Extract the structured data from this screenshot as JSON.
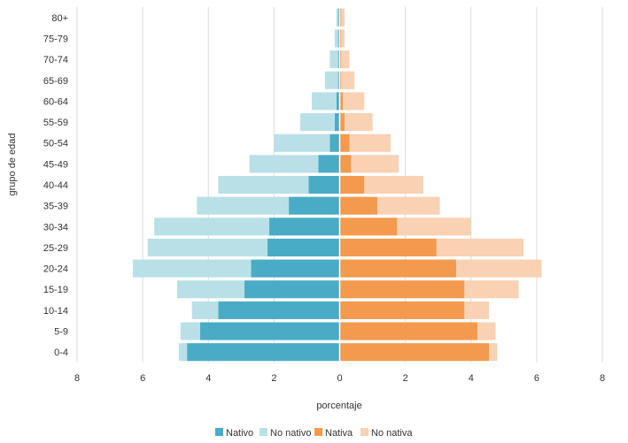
{
  "chart_data": {
    "type": "bar",
    "orientation": "horizontal",
    "layout": "population-pyramid",
    "ylabel": "grupo de edad",
    "xlabel": "porcentaje",
    "xlim": [
      -8,
      8
    ],
    "x_ticks": [
      -8,
      -6,
      -4,
      -2,
      0,
      2,
      4,
      6,
      8
    ],
    "x_tick_labels": [
      "8",
      "6",
      "4",
      "2",
      "0",
      "2",
      "4",
      "6",
      "8"
    ],
    "grid": "vertical",
    "legend_position": "bottom",
    "categories": [
      "80+",
      "75-79",
      "70-74",
      "65-69",
      "60-64",
      "55-59",
      "50-54",
      "45-49",
      "40-44",
      "35-39",
      "30-34",
      "25-29",
      "20-24",
      "15-19",
      "10-14",
      "5-9",
      "0-4"
    ],
    "series": [
      {
        "name": "Nativo",
        "side": "left",
        "color": "#4aabc6",
        "values": [
          0.05,
          0.05,
          0.05,
          0.05,
          0.1,
          0.15,
          0.3,
          0.65,
          0.95,
          1.55,
          2.15,
          2.2,
          2.7,
          2.9,
          3.7,
          4.25,
          4.65
        ]
      },
      {
        "name": "No nativo",
        "side": "left",
        "color": "#b9e0e7",
        "values": [
          0.05,
          0.1,
          0.25,
          0.4,
          0.75,
          1.05,
          1.7,
          2.1,
          2.75,
          2.8,
          3.5,
          3.65,
          3.6,
          2.05,
          0.8,
          0.6,
          0.25
        ]
      },
      {
        "name": "Nativa",
        "side": "right",
        "color": "#f39a4e",
        "values": [
          0.05,
          0.05,
          0.05,
          0.05,
          0.1,
          0.15,
          0.3,
          0.35,
          0.75,
          1.15,
          1.75,
          2.95,
          3.55,
          3.8,
          3.8,
          4.2,
          4.55
        ]
      },
      {
        "name": "No nativa",
        "side": "right",
        "color": "#f9d1b3",
        "values": [
          0.1,
          0.1,
          0.25,
          0.4,
          0.65,
          0.85,
          1.25,
          1.45,
          1.8,
          1.9,
          2.25,
          2.65,
          2.6,
          1.65,
          0.75,
          0.55,
          0.25
        ]
      }
    ]
  }
}
